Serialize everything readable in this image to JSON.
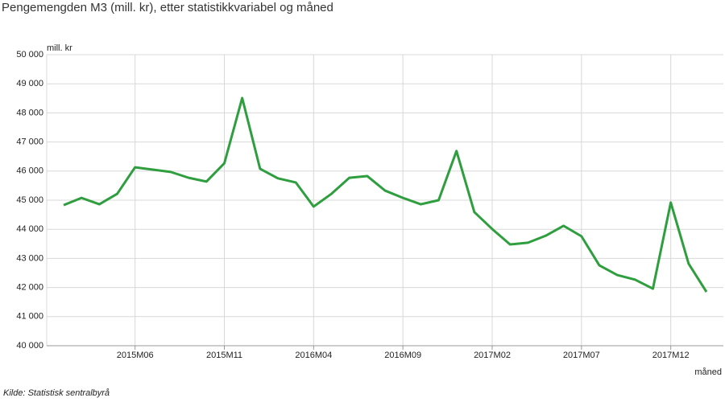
{
  "chart_data": {
    "type": "line",
    "title": "Pengemengden M3 (mill. kr), etter statistikkvariabel og måned",
    "y_label": "mill. kr",
    "x_label": "måned",
    "source": "Kilde:  Statistisk sentralbyrå",
    "categories": [
      null,
      null,
      null,
      null,
      "2015M06",
      null,
      null,
      null,
      null,
      "2015M11",
      null,
      null,
      null,
      null,
      "2016M04",
      null,
      null,
      null,
      null,
      "2016M09",
      null,
      null,
      null,
      null,
      "2017M02",
      null,
      null,
      null,
      null,
      "2017M07",
      null,
      null,
      null,
      null,
      "2017M12",
      null,
      null
    ],
    "series": [
      {
        "name": "Pengemengden M3",
        "color": "#2e9e3e",
        "values": [
          44830,
          45080,
          44860,
          45220,
          46130,
          46050,
          45970,
          45770,
          45640,
          46270,
          48510,
          46080,
          45750,
          45610,
          44780,
          45220,
          45770,
          45830,
          45330,
          45080,
          44860,
          45000,
          46690,
          44590,
          44010,
          43480,
          43540,
          43780,
          44120,
          43760,
          42760,
          42430,
          42270,
          41960,
          44920,
          42820,
          41850
        ]
      }
    ],
    "ylim": [
      40000,
      50000
    ],
    "yticks": [
      {
        "value": 40000,
        "label": "40 000"
      },
      {
        "value": 41000,
        "label": "41 000"
      },
      {
        "value": 42000,
        "label": "42 000"
      },
      {
        "value": 43000,
        "label": "43 000"
      },
      {
        "value": 44000,
        "label": "44 000"
      },
      {
        "value": 45000,
        "label": "45 000"
      },
      {
        "value": 46000,
        "label": "46 000"
      },
      {
        "value": 47000,
        "label": "47 000"
      },
      {
        "value": 48000,
        "label": "48 000"
      },
      {
        "value": 49000,
        "label": "49 000"
      },
      {
        "value": 50000,
        "label": "50 000"
      }
    ],
    "grid": true
  }
}
